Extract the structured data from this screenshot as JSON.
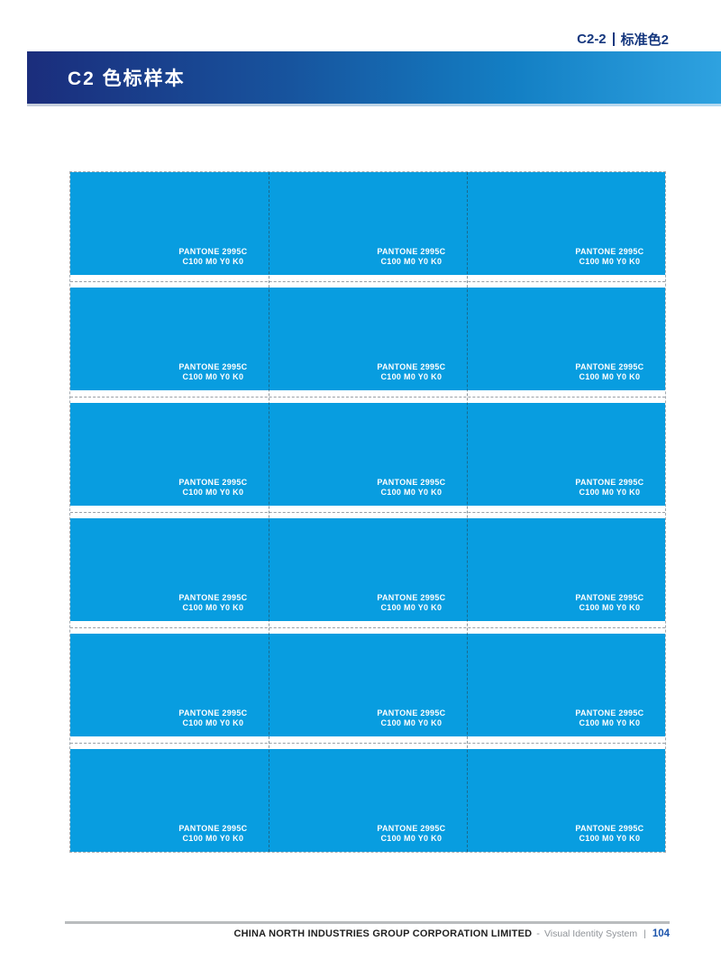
{
  "header_tag": {
    "code": "C2-2",
    "label": "标准色2"
  },
  "title_bar": {
    "title": "C2 色标样本"
  },
  "grid": {
    "rows": 6,
    "cols": 3
  },
  "swatch": {
    "pantone": "PANTONE 2995C",
    "cmyk": "C100 M0 Y0 K0",
    "color": "#089DE0"
  },
  "footer": {
    "company": "CHINA NORTH INDUSTRIES GROUP CORPORATION LIMITED",
    "separator": "-",
    "system": "Visual Identity System",
    "divider": "|",
    "page_number": "104"
  },
  "colors": {
    "accent_navy": "#16387F",
    "swatch_cyan": "#089DE0",
    "page_number_blue": "#1C55AD"
  }
}
